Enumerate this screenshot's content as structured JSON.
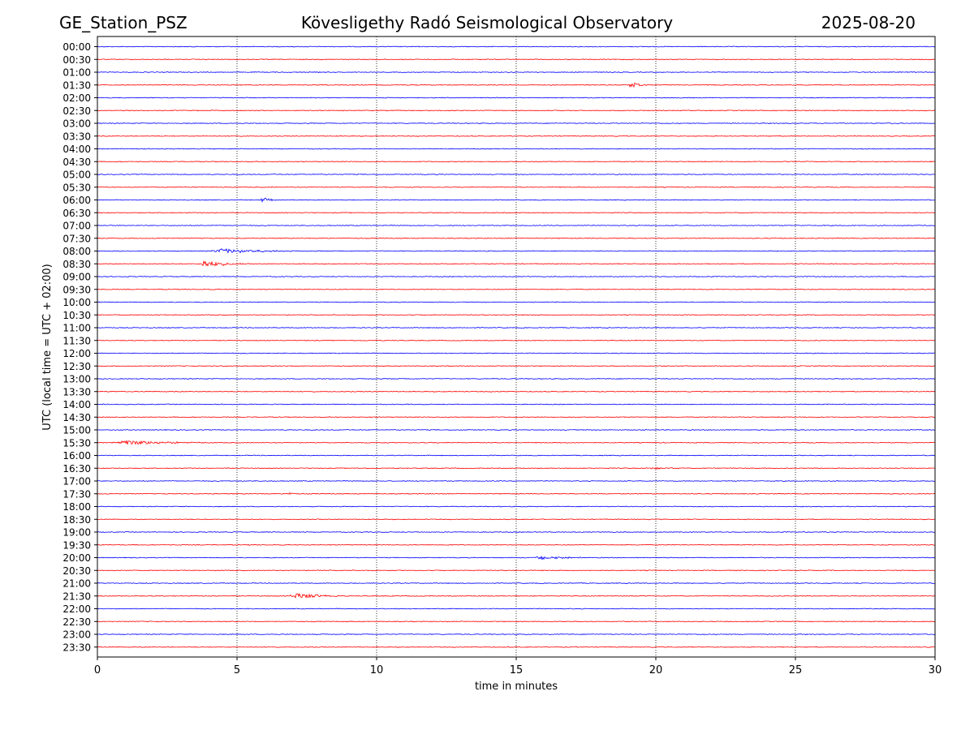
{
  "header": {
    "station": "GE_Station_PSZ",
    "observatory": "Kövesligethy Radó Seismological Observatory",
    "date": "2025-08-20"
  },
  "chart_data": {
    "type": "line",
    "title": "Kövesligethy Radó Seismological Observatory",
    "xlabel": "time in minutes",
    "ylabel": "UTC (local time = UTC + 02:00)",
    "xlim": [
      0,
      30
    ],
    "x_ticks": [
      0,
      5,
      10,
      15,
      20,
      25,
      30
    ],
    "grid_x": [
      5,
      10,
      15,
      20,
      25
    ],
    "row_labels": [
      "00:00",
      "00:30",
      "01:00",
      "01:30",
      "02:00",
      "02:30",
      "03:00",
      "03:30",
      "04:00",
      "04:30",
      "05:00",
      "05:30",
      "06:00",
      "06:30",
      "07:00",
      "07:30",
      "08:00",
      "08:30",
      "09:00",
      "09:30",
      "10:00",
      "10:30",
      "11:00",
      "11:30",
      "12:00",
      "12:30",
      "13:00",
      "13:30",
      "14:00",
      "14:30",
      "15:00",
      "15:30",
      "16:00",
      "16:30",
      "17:00",
      "17:30",
      "18:00",
      "18:30",
      "19:00",
      "19:30",
      "20:00",
      "20:30",
      "21:00",
      "21:30",
      "22:00",
      "22:30",
      "23:00",
      "23:30"
    ],
    "colors": [
      "#0000ff",
      "#ff0000"
    ],
    "events": [
      {
        "row": "01:30",
        "start_min": 19.0,
        "duration_min": 0.8,
        "amplitude": 4
      },
      {
        "row": "06:00",
        "start_min": 5.8,
        "duration_min": 0.7,
        "amplitude": 3
      },
      {
        "row": "08:00",
        "start_min": 4.0,
        "duration_min": 3.0,
        "amplitude": 3
      },
      {
        "row": "08:30",
        "start_min": 3.6,
        "duration_min": 1.6,
        "amplitude": 5
      },
      {
        "row": "15:30",
        "start_min": 0.5,
        "duration_min": 3.5,
        "amplitude": 3
      },
      {
        "row": "16:30",
        "start_min": 19.5,
        "duration_min": 1.5,
        "amplitude": 1.5
      },
      {
        "row": "17:30",
        "start_min": 6.8,
        "duration_min": 0.4,
        "amplitude": 2
      },
      {
        "row": "20:00",
        "start_min": 15.6,
        "duration_min": 1.8,
        "amplitude": 2.5
      },
      {
        "row": "21:30",
        "start_min": 6.8,
        "duration_min": 2.0,
        "amplitude": 4
      }
    ]
  }
}
